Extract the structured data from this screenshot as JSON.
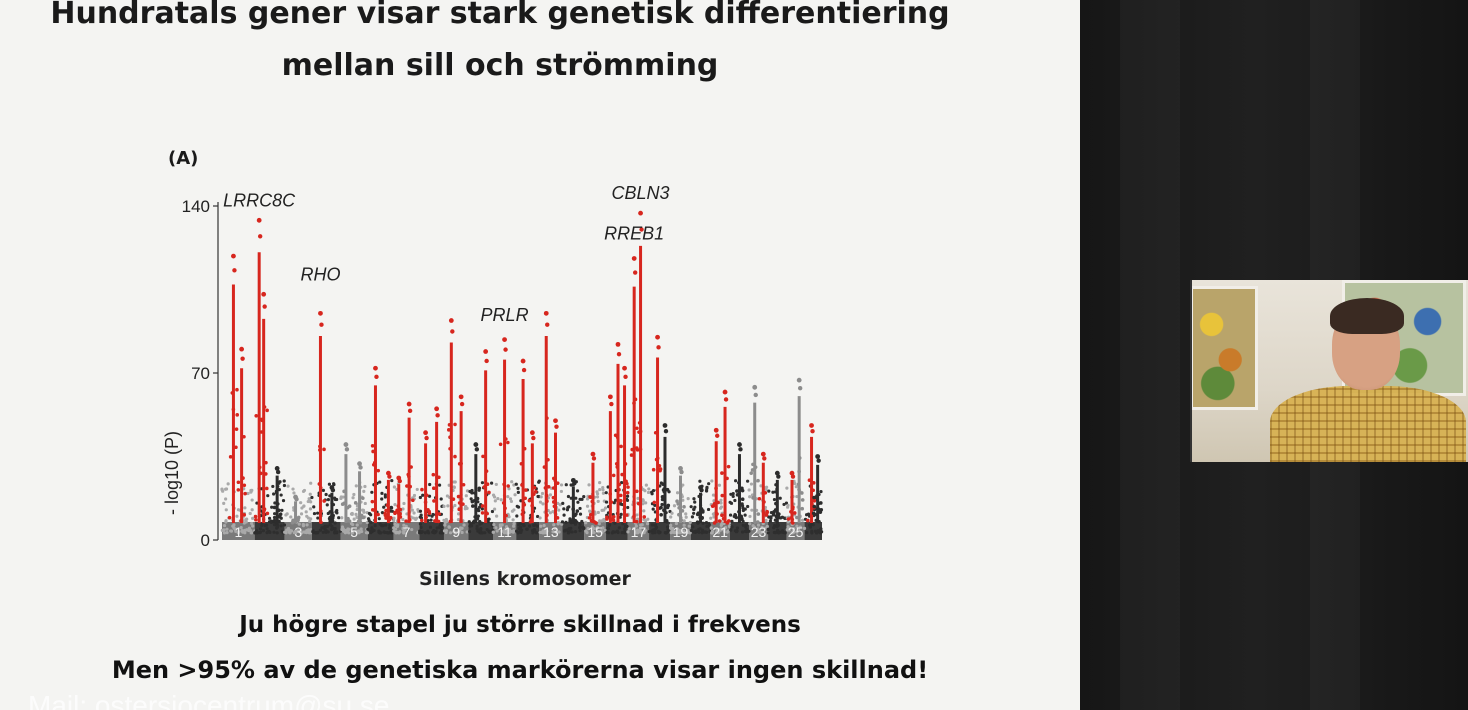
{
  "slide": {
    "title_line_1": "Hundratals gener visar stark genetisk differentiering",
    "title_line_2": "mellan sill och strömming",
    "panel_label": "(A)",
    "footer_line_1": "Ju högre stapel ju större skillnad i frekvens",
    "footer_line_2": "Men >95% av de genetiska markörerna visar ingen skillnad!",
    "mail_overlay": "Mail: ostersjocentrum@su.se"
  },
  "colors": {
    "highlight": "#d7261e",
    "chrom_dark": "#2e2e2e",
    "chrom_light": "#a9a9a9",
    "slide_bg": "#f4f4f2"
  },
  "chart_data": {
    "type": "scatter",
    "subtype": "manhattan",
    "title": "",
    "xlabel": "Sillens kromosomer",
    "ylabel": "- log10 (P)",
    "ylim": [
      0,
      140
    ],
    "y_ticks": [
      0,
      70,
      140
    ],
    "grid": false,
    "legend": "none",
    "chromosomes": [
      "1",
      "2",
      "3",
      "4",
      "5",
      "6",
      "7",
      "8",
      "9",
      "10",
      "11",
      "12",
      "13",
      "14",
      "15",
      "16",
      "17",
      "18",
      "19",
      "20",
      "21",
      "22",
      "23",
      "24",
      "25",
      "26"
    ],
    "chromosome_labels_shown": [
      "1",
      "3",
      "5",
      "7",
      "9",
      "11",
      "13",
      "15",
      "17",
      "19",
      "21",
      "23",
      "25"
    ],
    "peaks": [
      {
        "chrom": "1",
        "pos": 0.35,
        "value": 119,
        "significant": true
      },
      {
        "chrom": "1",
        "pos": 0.6,
        "value": 80,
        "significant": true
      },
      {
        "chrom": "2",
        "pos": 0.15,
        "value": 134,
        "significant": true
      },
      {
        "chrom": "2",
        "pos": 0.3,
        "value": 103,
        "significant": true
      },
      {
        "chrom": "2",
        "pos": 0.75,
        "value": 30,
        "significant": false
      },
      {
        "chrom": "3",
        "pos": 0.4,
        "value": 18,
        "significant": false
      },
      {
        "chrom": "4",
        "pos": 0.3,
        "value": 95,
        "significant": true
      },
      {
        "chrom": "4",
        "pos": 0.7,
        "value": 22,
        "significant": false
      },
      {
        "chrom": "5",
        "pos": 0.2,
        "value": 40,
        "significant": false
      },
      {
        "chrom": "5",
        "pos": 0.7,
        "value": 32,
        "significant": false
      },
      {
        "chrom": "6",
        "pos": 0.3,
        "value": 72,
        "significant": true
      },
      {
        "chrom": "6",
        "pos": 0.8,
        "value": 28,
        "significant": true
      },
      {
        "chrom": "7",
        "pos": 0.2,
        "value": 26,
        "significant": true
      },
      {
        "chrom": "7",
        "pos": 0.6,
        "value": 57,
        "significant": true
      },
      {
        "chrom": "8",
        "pos": 0.25,
        "value": 45,
        "significant": true
      },
      {
        "chrom": "8",
        "pos": 0.7,
        "value": 55,
        "significant": true
      },
      {
        "chrom": "9",
        "pos": 0.3,
        "value": 92,
        "significant": true
      },
      {
        "chrom": "9",
        "pos": 0.7,
        "value": 60,
        "significant": true
      },
      {
        "chrom": "10",
        "pos": 0.3,
        "value": 40,
        "significant": false
      },
      {
        "chrom": "10",
        "pos": 0.7,
        "value": 79,
        "significant": true
      },
      {
        "chrom": "11",
        "pos": 0.5,
        "value": 84,
        "significant": true
      },
      {
        "chrom": "12",
        "pos": 0.3,
        "value": 75,
        "significant": true
      },
      {
        "chrom": "12",
        "pos": 0.7,
        "value": 45,
        "significant": true
      },
      {
        "chrom": "13",
        "pos": 0.3,
        "value": 95,
        "significant": true
      },
      {
        "chrom": "13",
        "pos": 0.7,
        "value": 50,
        "significant": true
      },
      {
        "chrom": "14",
        "pos": 0.5,
        "value": 25,
        "significant": false
      },
      {
        "chrom": "15",
        "pos": 0.4,
        "value": 36,
        "significant": true
      },
      {
        "chrom": "16",
        "pos": 0.2,
        "value": 60,
        "significant": true
      },
      {
        "chrom": "16",
        "pos": 0.55,
        "value": 82,
        "significant": true
      },
      {
        "chrom": "16",
        "pos": 0.85,
        "value": 72,
        "significant": true
      },
      {
        "chrom": "17",
        "pos": 0.3,
        "value": 118,
        "significant": true
      },
      {
        "chrom": "17",
        "pos": 0.6,
        "value": 137,
        "significant": true
      },
      {
        "chrom": "18",
        "pos": 0.4,
        "value": 85,
        "significant": true
      },
      {
        "chrom": "18",
        "pos": 0.75,
        "value": 48,
        "significant": false
      },
      {
        "chrom": "19",
        "pos": 0.5,
        "value": 30,
        "significant": false
      },
      {
        "chrom": "20",
        "pos": 0.5,
        "value": 22,
        "significant": false
      },
      {
        "chrom": "21",
        "pos": 0.3,
        "value": 46,
        "significant": true
      },
      {
        "chrom": "21",
        "pos": 0.75,
        "value": 62,
        "significant": true
      },
      {
        "chrom": "22",
        "pos": 0.5,
        "value": 40,
        "significant": false
      },
      {
        "chrom": "23",
        "pos": 0.3,
        "value": 64,
        "significant": false
      },
      {
        "chrom": "23",
        "pos": 0.75,
        "value": 36,
        "significant": true
      },
      {
        "chrom": "24",
        "pos": 0.5,
        "value": 28,
        "significant": false
      },
      {
        "chrom": "25",
        "pos": 0.3,
        "value": 28,
        "significant": true
      },
      {
        "chrom": "25",
        "pos": 0.7,
        "value": 67,
        "significant": false
      },
      {
        "chrom": "26",
        "pos": 0.4,
        "value": 48,
        "significant": true
      },
      {
        "chrom": "26",
        "pos": 0.75,
        "value": 35,
        "significant": false
      }
    ],
    "annotations": [
      {
        "label": "LRRC8C",
        "chrom": "2",
        "pos": 0.15,
        "value": 134
      },
      {
        "label": "RHO",
        "chrom": "4",
        "pos": 0.3,
        "value": 103
      },
      {
        "label": "PRLR",
        "chrom": "11",
        "pos": 0.5,
        "value": 86
      },
      {
        "label": "RREB1",
        "chrom": "17",
        "pos": 0.3,
        "value": 120
      },
      {
        "label": "CBLN3",
        "chrom": "17",
        "pos": 0.6,
        "value": 137
      }
    ]
  }
}
